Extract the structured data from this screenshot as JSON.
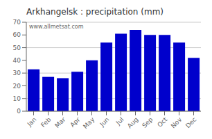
{
  "chart_data": {
    "type": "bar",
    "title": "Arkhangelsk : precipitation (mm)",
    "categories": [
      "Jan",
      "Feb",
      "Mar",
      "Apr",
      "May",
      "Jun",
      "Jul",
      "Aug",
      "Sep",
      "Oct",
      "Nov",
      "Dec"
    ],
    "values": [
      33,
      27,
      26,
      31,
      40,
      54,
      61,
      64,
      60,
      60,
      54,
      42
    ],
    "color": "#0000cc",
    "ylim": [
      0,
      70
    ],
    "yticks": [
      0,
      10,
      20,
      30,
      40,
      50,
      60,
      70
    ],
    "grid": true,
    "annotation": "www.allmetsat.com"
  }
}
